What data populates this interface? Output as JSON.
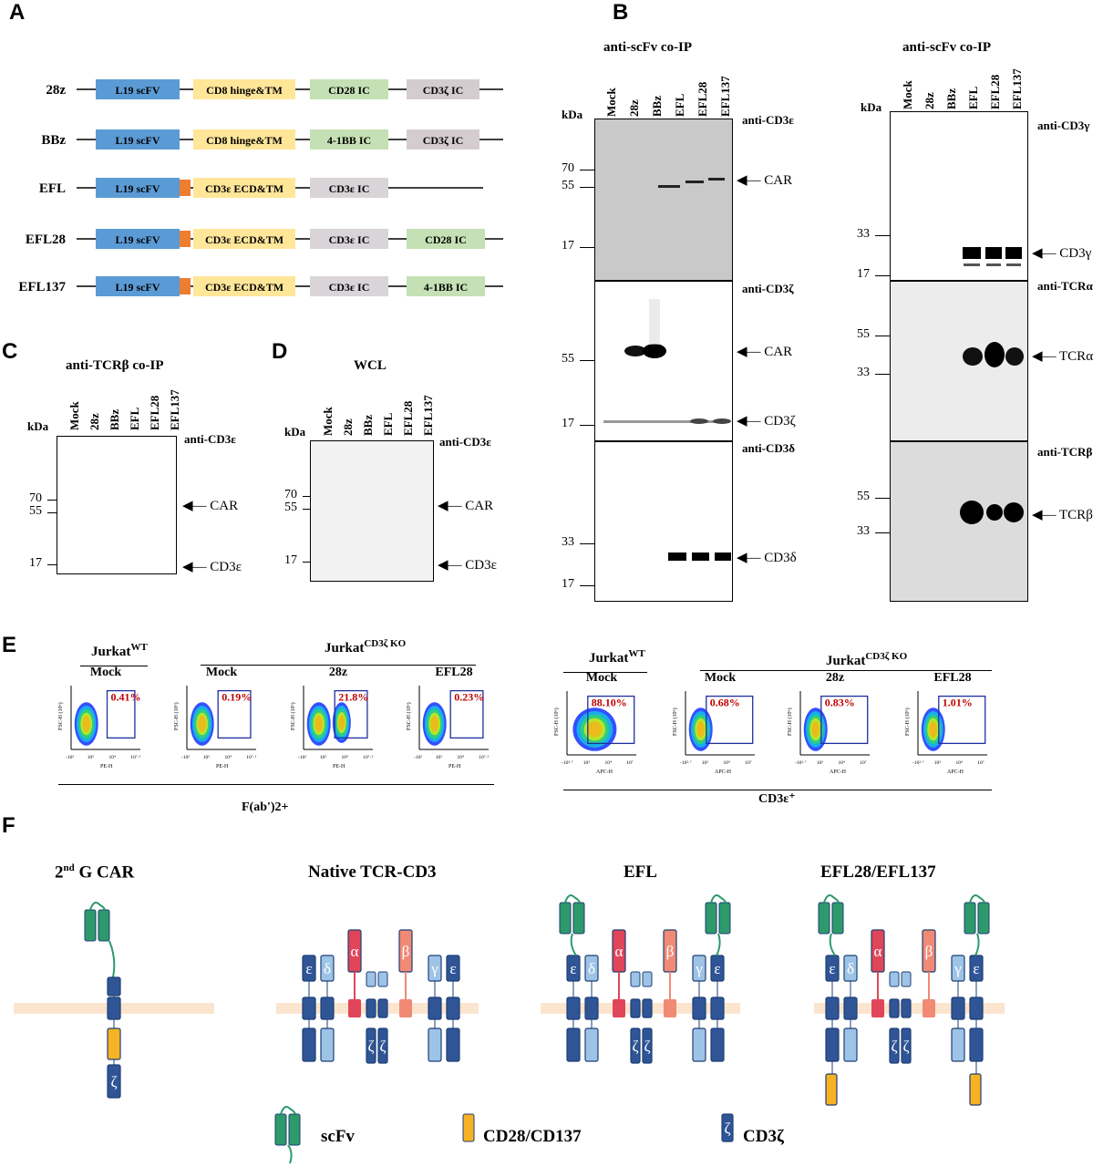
{
  "panels": {
    "A": "A",
    "B": "B",
    "C": "C",
    "D": "D",
    "E": "E",
    "F": "F"
  },
  "constructs": [
    {
      "name": "28z",
      "domains": [
        "L19 scFV",
        "CD8 hinge&TM",
        "CD28 IC",
        "CD3ζ IC"
      ]
    },
    {
      "name": "BBz",
      "domains": [
        "L19 scFV",
        "CD8 hinge&TM",
        "4-1BB IC",
        "CD3ζ IC"
      ]
    },
    {
      "name": "EFL",
      "domains": [
        "L19 scFV",
        "CD3ε ECD&TM",
        "CD3ε IC"
      ]
    },
    {
      "name": "EFL28",
      "domains": [
        "L19 scFV",
        "CD3ε ECD&TM",
        "CD3ε IC",
        "CD28 IC"
      ]
    },
    {
      "name": "EFL137",
      "domains": [
        "L19 scFV",
        "CD3ε ECD&TM",
        "CD3ε IC",
        "4-1BB IC"
      ]
    }
  ],
  "colors": {
    "scfv": "#5b9bd5",
    "hinge": "#ffe699",
    "cd28ic": "#c5e0b4",
    "cd3zic": "#d5ccd0",
    "linker": "#ed7d31",
    "cd3eic": "#d9d4d8",
    "blue_dark": "#2f5597",
    "blue_light": "#9dc3e6",
    "green": "#2e9a6b",
    "red": "#e0455a",
    "salmon": "#f08a75",
    "orange": "#f5b324",
    "membrane": "#fbe5cf",
    "percent": "#c00000",
    "gate": "#1f2fa0"
  },
  "lanes": [
    "Mock",
    "28z",
    "BBz",
    "EFL",
    "EFL28",
    "EFL137"
  ],
  "kda": "kDa",
  "panelB": {
    "left_title": "anti-scFv co-IP",
    "right_title": "anti-scFv co-IP",
    "left_blots": [
      {
        "antibody": "anti-CD3ε",
        "markers": [
          "70",
          "55",
          "17"
        ],
        "band": "CAR"
      },
      {
        "antibody": "anti-CD3ζ",
        "markers": [
          "55",
          "17"
        ],
        "bands": [
          "CAR",
          "CD3ζ"
        ]
      },
      {
        "antibody": "anti-CD3δ",
        "markers": [
          "33",
          "17"
        ],
        "band": "CD3δ"
      }
    ],
    "right_blots": [
      {
        "antibody": "anti-CD3γ",
        "markers": [
          "33",
          "17"
        ],
        "band": "CD3γ"
      },
      {
        "antibody": "anti-TCRα",
        "markers": [
          "55",
          "33"
        ],
        "band": "TCRα"
      },
      {
        "antibody": "anti-TCRβ",
        "markers": [
          "55",
          "33"
        ],
        "band": "TCRβ"
      }
    ]
  },
  "panelC": {
    "title": "anti-TCRβ co-IP",
    "antibody": "anti-CD3ε",
    "markers": [
      "70",
      "55",
      "17"
    ],
    "bands": [
      "CAR",
      "CD3ε"
    ]
  },
  "panelD": {
    "title": "WCL",
    "antibody": "anti-CD3ε",
    "markers": [
      "70",
      "55",
      "17"
    ],
    "bands": [
      "CAR",
      "CD3ε"
    ]
  },
  "panelE": {
    "left_group": {
      "wt_label": "Jurkat",
      "wt_sup": "WT",
      "ko_label": "Jurkat",
      "ko_sup": "CD3ζ KO",
      "xlabel": "F(ab')2+",
      "plots": [
        {
          "title": "Mock",
          "percent": "0.41%"
        },
        {
          "title": "Mock",
          "percent": "0.19%"
        },
        {
          "title": "28z",
          "percent": "21.8%"
        },
        {
          "title": "EFL28",
          "percent": "0.23%"
        }
      ],
      "y_axis": "FSC-H (10⁶)",
      "x_axis": "PE-H",
      "yticks": [
        "4.9",
        "4",
        "3",
        "2",
        "1.1"
      ],
      "xticks": [
        "-10²",
        "10³",
        "10⁴",
        "10⁷·²"
      ]
    },
    "right_group": {
      "wt_label": "Jurkat",
      "wt_sup": "WT",
      "ko_label": "Jurkat",
      "ko_sup": "CD3ζ KO",
      "xlabel": "CD3ε⁺",
      "plots": [
        {
          "title": "Mock",
          "percent": "88.10%"
        },
        {
          "title": "Mock",
          "percent": "0.68%"
        },
        {
          "title": "28z",
          "percent": "0.83%"
        },
        {
          "title": "EFL28",
          "percent": "1.01%"
        }
      ],
      "y_axis": "FSC-H (10⁶)",
      "x_axis": "APC-H",
      "yticks": [
        "4.9",
        "4",
        "3",
        "2",
        "1.1"
      ],
      "xticks": [
        "-10²·⁷",
        "10³",
        "10⁴",
        "10⁷"
      ]
    }
  },
  "panelF": {
    "titles": [
      "2nd G CAR",
      "Native TCR-CD3",
      "EFL",
      "EFL28/EFL137"
    ],
    "sup": "nd",
    "legend": [
      "scFv",
      "CD28/CD137",
      "CD3ζ"
    ],
    "greek": {
      "eps": "ε",
      "delta": "δ",
      "alpha": "α",
      "beta": "β",
      "gamma": "γ",
      "zeta": "ζ"
    }
  }
}
